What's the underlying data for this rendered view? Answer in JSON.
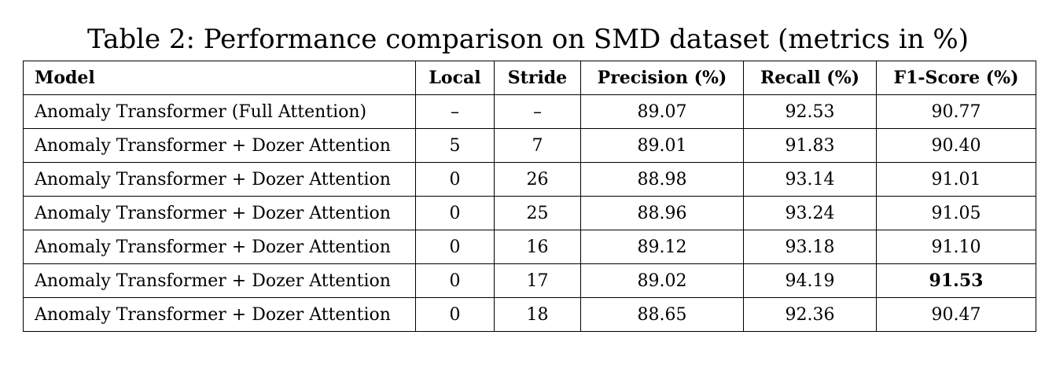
{
  "caption": "Table 2: Performance comparison on SMD dataset (metrics in %)",
  "columns": [
    "Model",
    "Local",
    "Stride",
    "Precision (%)",
    "Recall (%)",
    "F1-Score (%)"
  ],
  "rows": [
    {
      "model": "Anomaly Transformer (Full Attention)",
      "local": "–",
      "stride": "–",
      "precision": "89.07",
      "recall": "92.53",
      "f1": "90.77",
      "best_f1": false
    },
    {
      "model": "Anomaly Transformer + Dozer Attention",
      "local": "5",
      "stride": "7",
      "precision": "89.01",
      "recall": "91.83",
      "f1": "90.40",
      "best_f1": false
    },
    {
      "model": "Anomaly Transformer + Dozer Attention",
      "local": "0",
      "stride": "26",
      "precision": "88.98",
      "recall": "93.14",
      "f1": "91.01",
      "best_f1": false
    },
    {
      "model": "Anomaly Transformer + Dozer Attention",
      "local": "0",
      "stride": "25",
      "precision": "88.96",
      "recall": "93.24",
      "f1": "91.05",
      "best_f1": false
    },
    {
      "model": "Anomaly Transformer + Dozer Attention",
      "local": "0",
      "stride": "16",
      "precision": "89.12",
      "recall": "93.18",
      "f1": "91.10",
      "best_f1": false
    },
    {
      "model": "Anomaly Transformer + Dozer Attention",
      "local": "0",
      "stride": "17",
      "precision": "89.02",
      "recall": "94.19",
      "f1": "91.53",
      "best_f1": true
    },
    {
      "model": "Anomaly Transformer + Dozer Attention",
      "local": "0",
      "stride": "18",
      "precision": "88.65",
      "recall": "92.36",
      "f1": "90.47",
      "best_f1": false
    }
  ]
}
